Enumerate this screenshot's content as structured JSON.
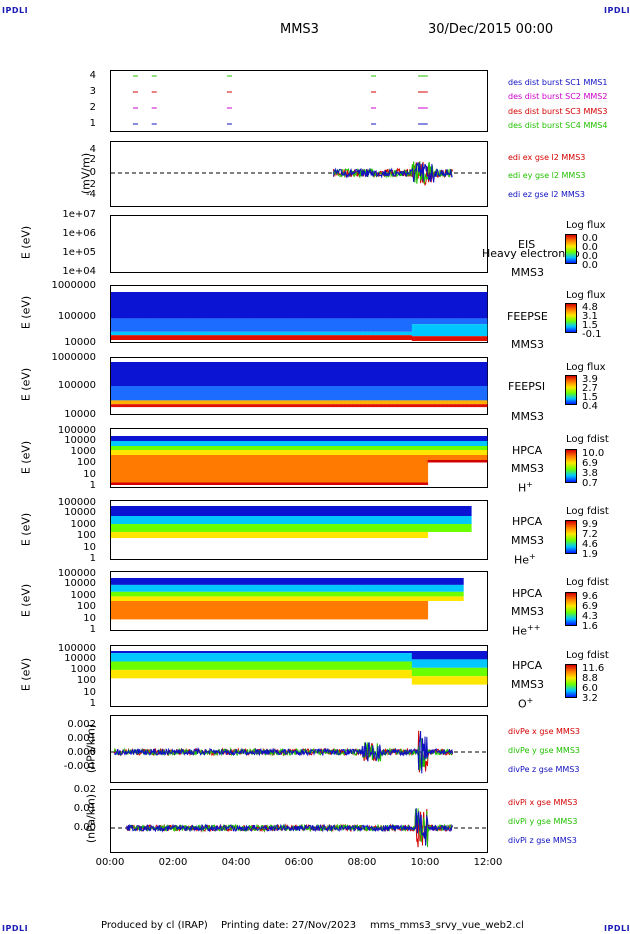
{
  "header": {
    "spacecraft": "MMS3",
    "datetime": "30/Dec/2015 00:00",
    "corner": "IPDLI"
  },
  "footer": {
    "produced": "Produced by cl (IRAP)",
    "printing": "Printing date: 27/Nov/2023",
    "file": "mms_mms3_srvy_vue_web2.cl"
  },
  "x_ticks": [
    "00:00",
    "02:00",
    "04:00",
    "06:00",
    "08:00",
    "10:00",
    "12:00"
  ],
  "colors": {
    "red": "#d40000",
    "green": "#22c000",
    "blue": "#1010c0",
    "magenta": "#cc00cc",
    "spec_red": "#e01000",
    "spec_blue": "#0a14d2"
  },
  "chart_data": [
    {
      "type": "scatter",
      "yticks": [
        "1",
        "2",
        "3",
        "4"
      ],
      "series": [
        {
          "name": "des dist burst SC1 MMS1",
          "color": "#1010c0"
        },
        {
          "name": "des dist burst SC2 MMS2",
          "color": "#cc00cc"
        },
        {
          "name": "des dist burst SC3 MMS3",
          "color": "#d40000"
        },
        {
          "name": "des dist burst SC4 MMS4",
          "color": "#22c000"
        }
      ],
      "burst_times_h": [
        0.7,
        1.3,
        3.7,
        8.3,
        9.8,
        9.95
      ]
    },
    {
      "type": "line",
      "ylabel": "(mV/m)",
      "yticks": [
        "4",
        "2",
        "0",
        "-2",
        "-4"
      ],
      "ylim": [
        -5,
        5
      ],
      "series": [
        {
          "name": "edi ex gse l2 MMS3",
          "color": "#d40000"
        },
        {
          "name": "edi ey gse l2 MMS3",
          "color": "#22c000"
        },
        {
          "name": "edi ez gse l2 MMS3",
          "color": "#1010c0"
        }
      ]
    },
    {
      "type": "heatmap",
      "ylabel": "E (eV)",
      "yticks": [
        "1e+07",
        "1e+06",
        "1e+05",
        "1e+04"
      ],
      "instrument": [
        "EIS",
        "MMS3"
      ],
      "overlap_label": "Heavy electron to",
      "cbar_title": "Log flux",
      "cbar_values": [
        "0.0",
        "0.0",
        "0.0",
        "0.0"
      ]
    },
    {
      "type": "heatmap",
      "ylabel": "E (eV)",
      "yticks": [
        "1000000",
        "100000",
        "10000"
      ],
      "instrument": [
        "FEEPSE",
        "MMS3"
      ],
      "cbar_title": "Log flux",
      "cbar_values": [
        "4.8",
        "3.1",
        "1.5",
        "-0.1"
      ]
    },
    {
      "type": "heatmap",
      "ylabel": "E (eV)",
      "yticks": [
        "1000000",
        "100000",
        "10000"
      ],
      "instrument": [
        "FEEPSI",
        "MMS3"
      ],
      "cbar_title": "Log flux",
      "cbar_values": [
        "3.9",
        "2.7",
        "1.5",
        "0.4"
      ]
    },
    {
      "type": "heatmap",
      "ylabel": "E (eV)",
      "yticks": [
        "100000",
        "10000",
        "1000",
        "100",
        "10",
        "1"
      ],
      "instrument": [
        "HPCA",
        "MMS3"
      ],
      "species": "H",
      "species_sup": "+",
      "cbar_title": "Log fdist",
      "cbar_values": [
        "10.0",
        "6.9",
        "3.8",
        "0.7"
      ]
    },
    {
      "type": "heatmap",
      "ylabel": "E (eV)",
      "yticks": [
        "100000",
        "10000",
        "1000",
        "100",
        "10",
        "1"
      ],
      "instrument": [
        "HPCA",
        "MMS3"
      ],
      "species": "He",
      "species_sup": "+",
      "cbar_title": "Log fdist",
      "cbar_values": [
        "9.9",
        "7.2",
        "4.6",
        "1.9"
      ]
    },
    {
      "type": "heatmap",
      "ylabel": "E (eV)",
      "yticks": [
        "100000",
        "10000",
        "1000",
        "100",
        "10",
        "1"
      ],
      "instrument": [
        "HPCA",
        "MMS3"
      ],
      "species": "He",
      "species_sup": "++",
      "cbar_title": "Log fdist",
      "cbar_values": [
        "9.6",
        "6.9",
        "4.3",
        "1.6"
      ]
    },
    {
      "type": "heatmap",
      "ylabel": "E (eV)",
      "yticks": [
        "100000",
        "10000",
        "1000",
        "100",
        "10",
        "1"
      ],
      "instrument": [
        "HPCA",
        "MMS3"
      ],
      "species": "O",
      "species_sup": "+",
      "cbar_title": "Log fdist",
      "cbar_values": [
        "11.6",
        "8.8",
        "6.0",
        "3.2"
      ]
    },
    {
      "type": "line",
      "ylabel": "(nPa/km)",
      "yticks": [
        "0.002",
        "0.001",
        "0.000",
        "-0.001"
      ],
      "ylim": [
        -0.0017,
        0.0028
      ],
      "series": [
        {
          "name": "divPe x gse MMS3",
          "color": "#d40000"
        },
        {
          "name": "divPe y gse MMS3",
          "color": "#22c000"
        },
        {
          "name": "divPe z gse MMS3",
          "color": "#1010c0"
        }
      ]
    },
    {
      "type": "line",
      "ylabel": "(nPa/km)",
      "yticks": [
        "0.02",
        "0.01",
        "0.00"
      ],
      "ylim": [
        -0.009,
        0.021
      ],
      "series": [
        {
          "name": "divPi x gse MMS3",
          "color": "#d40000"
        },
        {
          "name": "divPi y gse MMS3",
          "color": "#22c000"
        },
        {
          "name": "divPi z gse MMS3",
          "color": "#1010c0"
        }
      ]
    }
  ]
}
